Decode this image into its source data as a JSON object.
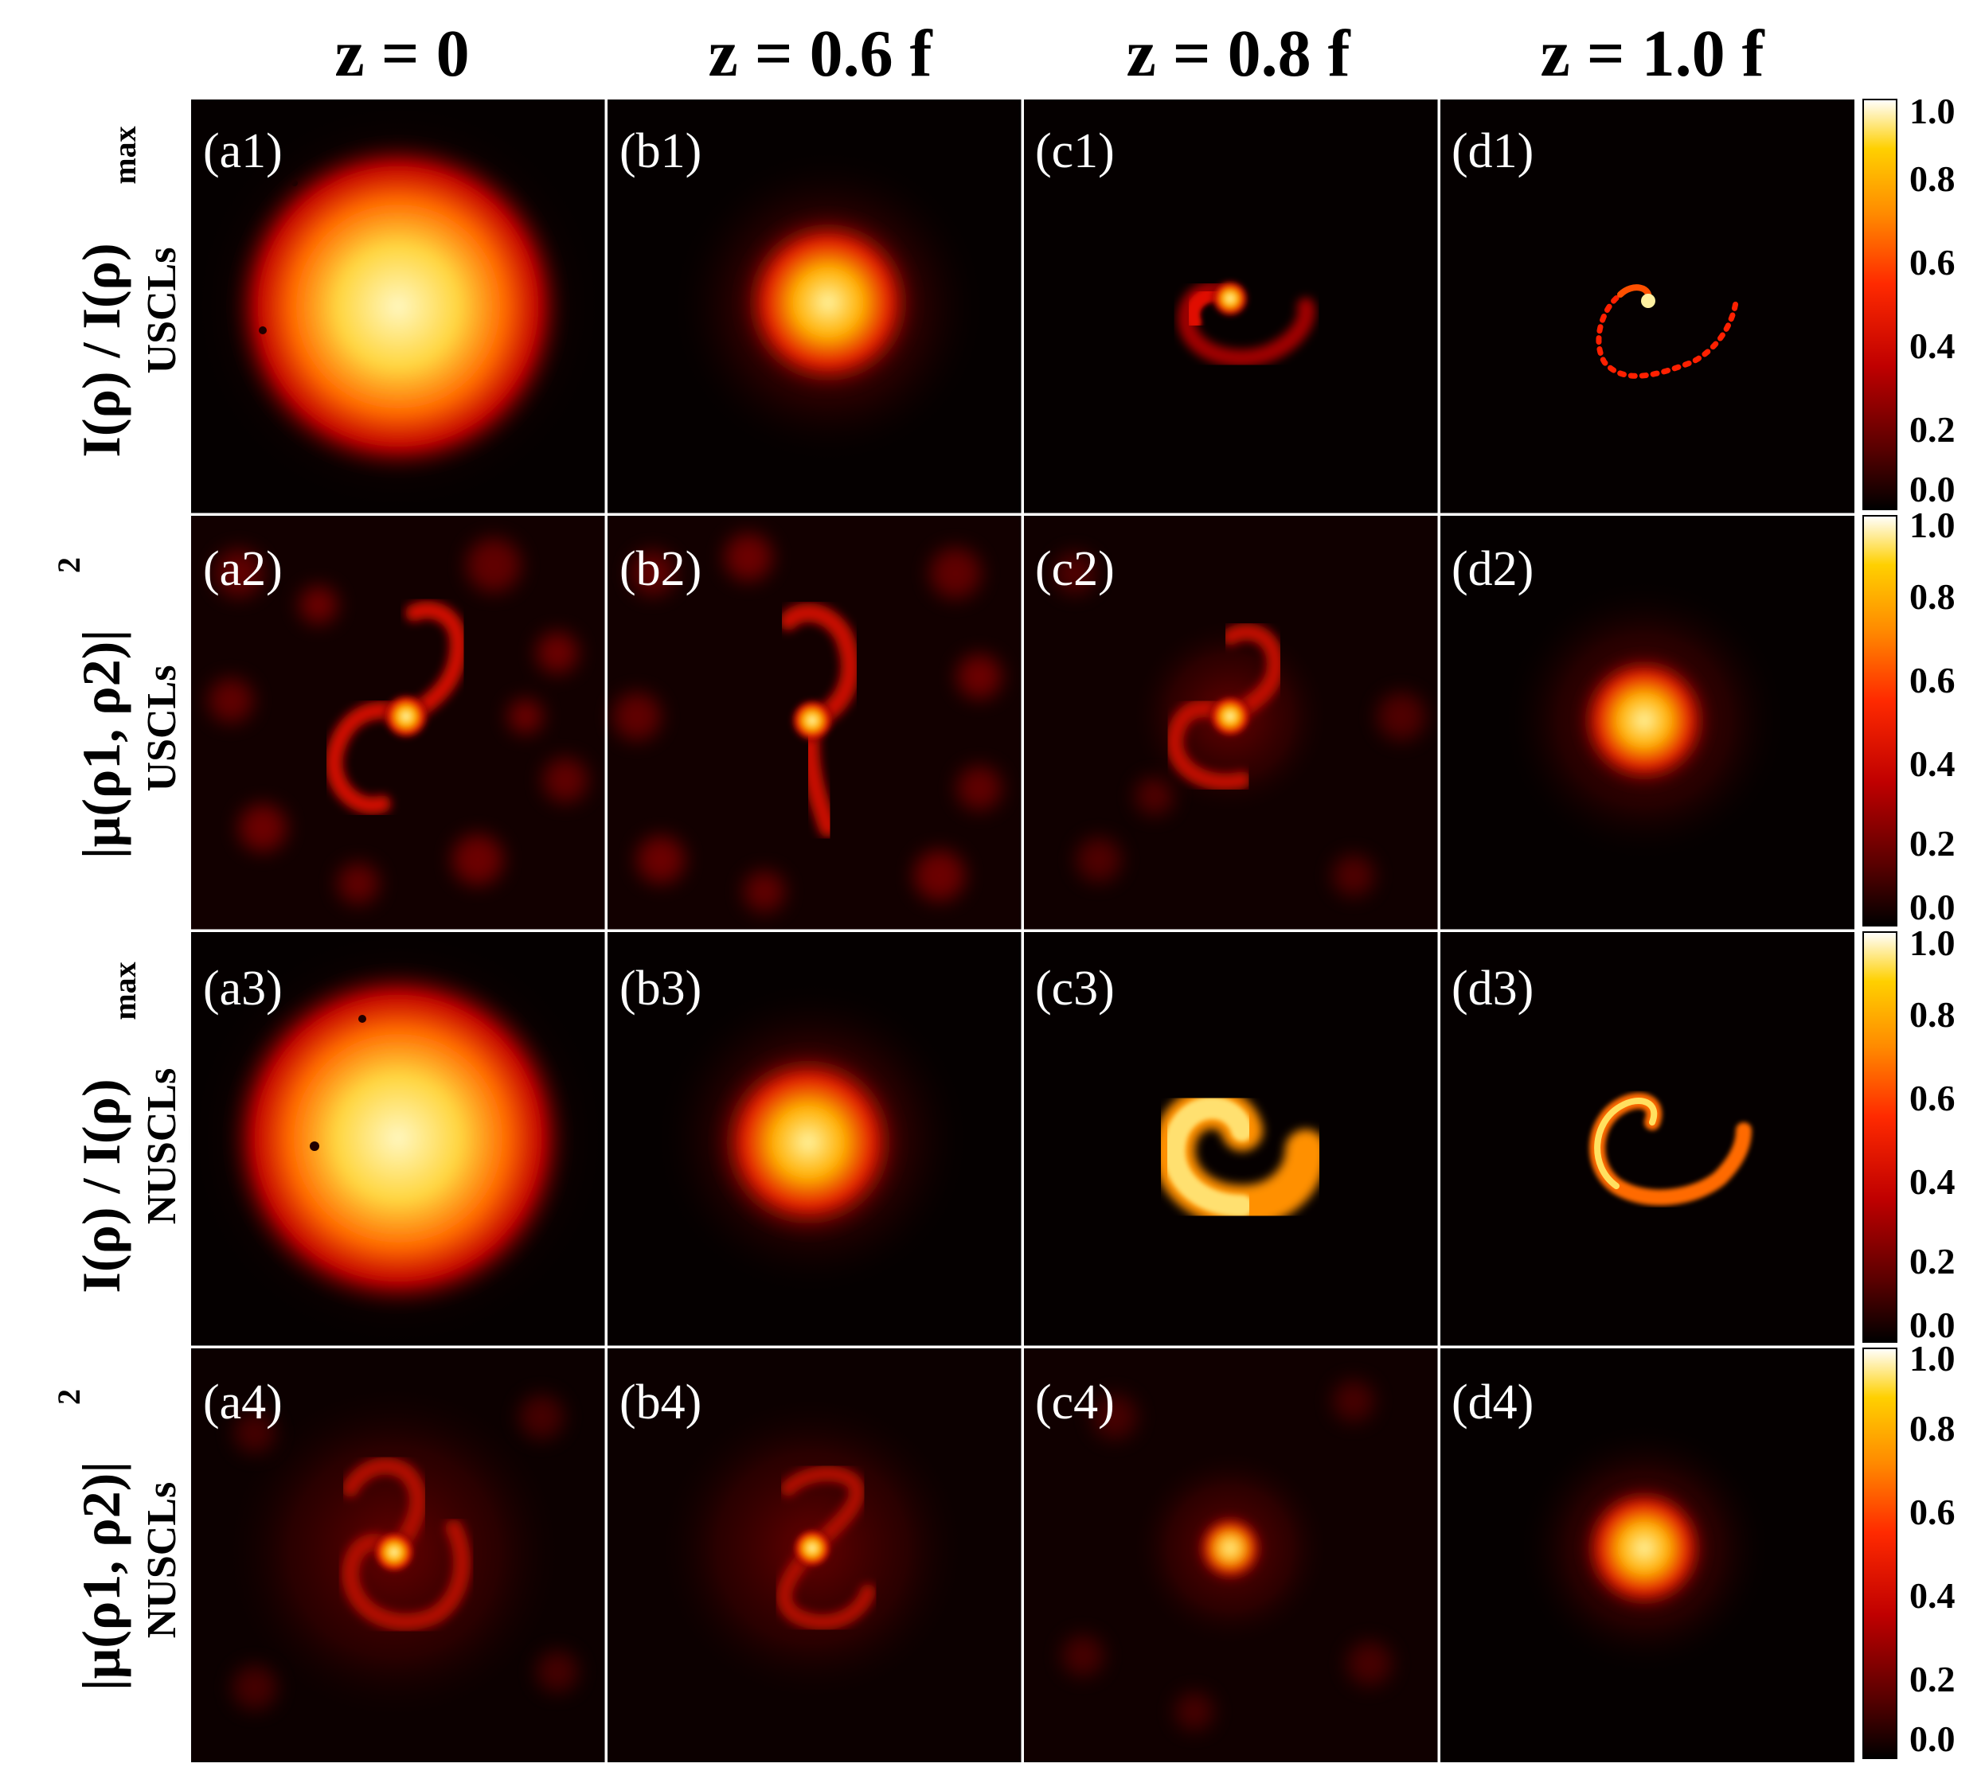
{
  "figure": {
    "columns": [
      "z = 0",
      "z = 0.6 f",
      "z = 0.8 f",
      "z = 1.0 f"
    ],
    "rows": [
      {
        "quantity_main": "I(ρ) / I(ρ)",
        "quantity_sub": "max",
        "beam": "USCLs",
        "panels": [
          "(a1)",
          "(b1)",
          "(c1)",
          "(d1)"
        ]
      },
      {
        "quantity_main": "|μ(ρ1, ρ2)|",
        "quantity_sub": "2",
        "beam": "USCLs",
        "panels": [
          "(a2)",
          "(b2)",
          "(c2)",
          "(d2)"
        ]
      },
      {
        "quantity_main": "I(ρ) / I(ρ)",
        "quantity_sub": "max",
        "beam": "NUSCLs",
        "panels": [
          "(a3)",
          "(b3)",
          "(c3)",
          "(d3)"
        ]
      },
      {
        "quantity_main": "|μ(ρ1, ρ2)|",
        "quantity_sub": "2",
        "beam": "NUSCLs",
        "panels": [
          "(a4)",
          "(b4)",
          "(c4)",
          "(d4)"
        ]
      }
    ],
    "colorbar": {
      "ticks": [
        "1.0",
        "0.8",
        "0.6",
        "0.4",
        "0.2",
        "0.0"
      ],
      "colormap": [
        "#000000",
        "#5a0000",
        "#c00000",
        "#ff2a00",
        "#ff8a00",
        "#ffd000",
        "#ffffff"
      ]
    }
  }
}
